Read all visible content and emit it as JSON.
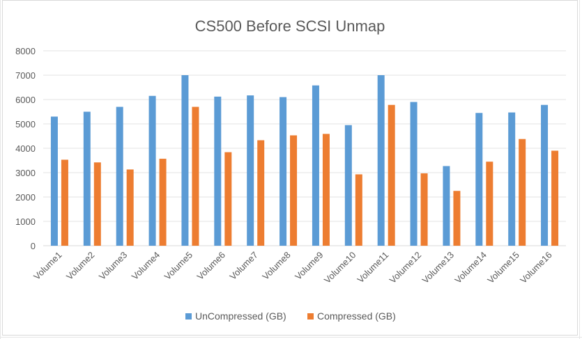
{
  "chart_data": {
    "type": "bar",
    "title": "CS500 Before SCSI Unmap",
    "xlabel": "",
    "ylabel": "",
    "ylim": [
      0,
      8000
    ],
    "yticks": [
      0,
      1000,
      2000,
      3000,
      4000,
      5000,
      6000,
      7000,
      8000
    ],
    "grid": true,
    "legend_position": "bottom",
    "categories": [
      "Volume1",
      "Volume2",
      "Volume3",
      "Volume4",
      "Volume5",
      "Volume6",
      "Volume7",
      "Volume8",
      "Volume9",
      "Volume10",
      "Volume11",
      "Volume12",
      "Volume13",
      "Volume14",
      "Volume15",
      "Volume16"
    ],
    "series": [
      {
        "name": "UnCompressed (GB)",
        "color": "#5b9bd5",
        "values": [
          5300,
          5500,
          5700,
          6150,
          7000,
          6120,
          6170,
          6100,
          6580,
          4950,
          7000,
          5900,
          3270,
          5450,
          5470,
          5780
        ]
      },
      {
        "name": "Compressed (GB)",
        "color": "#ed7d31",
        "values": [
          3530,
          3420,
          3130,
          3570,
          5700,
          3840,
          4330,
          4530,
          4590,
          2930,
          5780,
          2970,
          2250,
          3450,
          4380,
          3900
        ]
      }
    ]
  }
}
